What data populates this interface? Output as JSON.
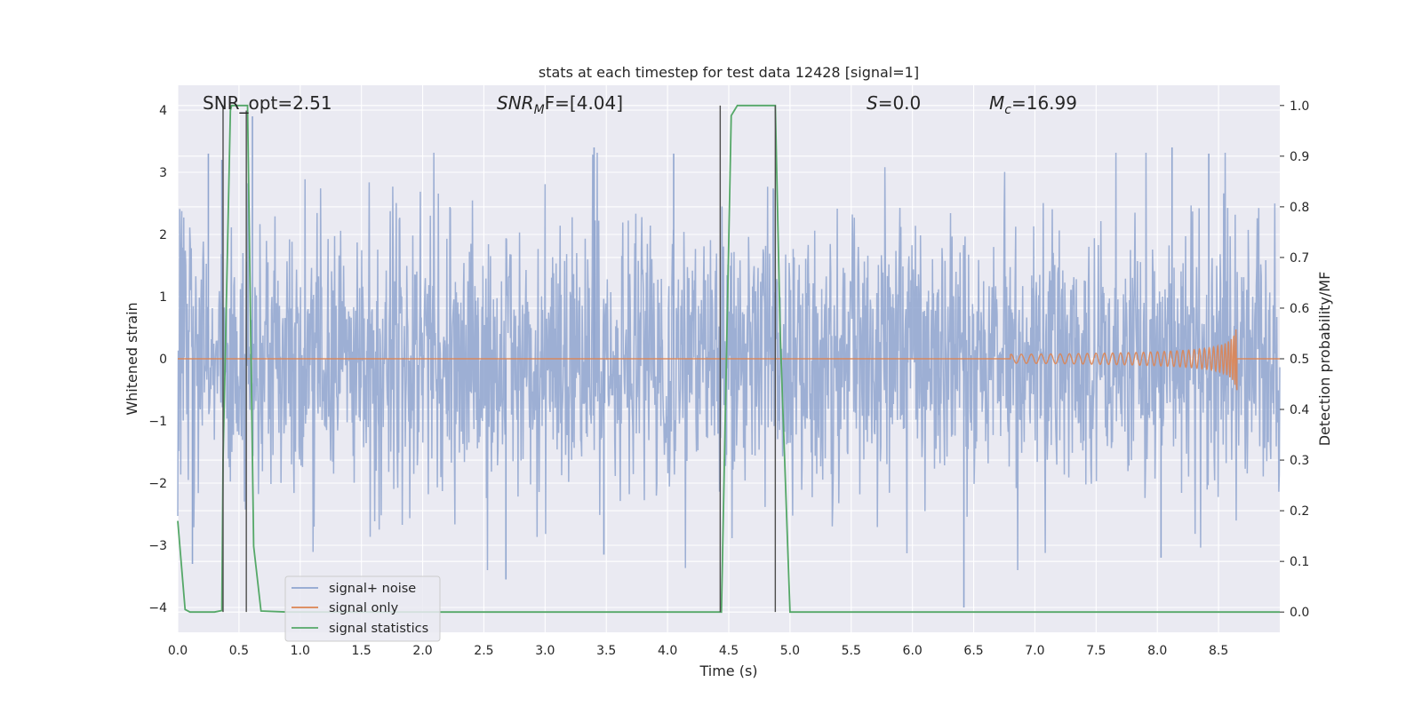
{
  "chart_data": {
    "type": "line",
    "title": "stats at each timestep for test data 12428 [signal=1]",
    "xlabel": "Time (s)",
    "ylabel_left": "Whitened strain",
    "ylabel_right": "Detection probability/MF",
    "xlim": [
      0,
      9.0
    ],
    "ylim_left": [
      -4.4,
      4.4
    ],
    "ylim_right": [
      -0.04,
      1.04
    ],
    "x_ticks": [
      0.0,
      0.5,
      1.0,
      1.5,
      2.0,
      2.5,
      3.0,
      3.5,
      4.0,
      4.5,
      5.0,
      5.5,
      6.0,
      6.5,
      7.0,
      7.5,
      8.0,
      8.5
    ],
    "x_tick_labels": [
      "0.0",
      "0.5",
      "1.0",
      "1.5",
      "2.0",
      "2.5",
      "3.0",
      "3.5",
      "4.0",
      "4.5",
      "5.0",
      "5.5",
      "6.0",
      "6.5",
      "7.0",
      "7.5",
      "8.0",
      "8.5"
    ],
    "y_left_ticks": [
      4,
      3,
      2,
      1,
      0,
      -1,
      -2,
      -3,
      -4
    ],
    "y_left_tick_labels": [
      "4",
      "3",
      "2",
      "1",
      "0",
      "−1",
      "−2",
      "−3",
      "−4"
    ],
    "y_right_ticks": [
      1.0,
      0.9,
      0.8,
      0.7,
      0.6,
      0.5,
      0.4,
      0.3,
      0.2,
      0.1,
      0.0
    ],
    "y_right_tick_labels": [
      "1.0",
      "0.9",
      "0.8",
      "0.7",
      "0.6",
      "0.5",
      "0.4",
      "0.3",
      "0.2",
      "0.1",
      "0.0"
    ],
    "grid": true,
    "legend_position": "lower-left",
    "annotations": {
      "snr_opt": "SNR_opt=2.51",
      "snr_mf_prefix": "SNR",
      "snr_mf_sub": "M",
      "snr_mf_suffix": "F=[4.04]",
      "s_label": "S",
      "s_value": "=0.0",
      "mc_label": "M",
      "mc_sub": "c",
      "mc_value": "=16.99"
    },
    "series": [
      {
        "name": "signal+ noise",
        "color": "#8fa5cf",
        "kind": "noise",
        "core_amplitude": 1.55,
        "typical_peak": 2.3,
        "max_peak": 3.9,
        "min_trough": -4.0,
        "notable_peaks": [
          [
            0.61,
            3.9
          ],
          [
            0.25,
            3.3
          ],
          [
            0.36,
            3.2
          ],
          [
            3.4,
            3.4
          ],
          [
            8.12,
            3.4
          ],
          [
            8.42,
            3.3
          ],
          [
            4.05,
            3.3
          ]
        ],
        "notable_troughs": [
          [
            6.42,
            -4.0
          ],
          [
            2.68,
            -3.55
          ],
          [
            0.12,
            -3.3
          ],
          [
            8.03,
            -3.2
          ],
          [
            3.48,
            -3.15
          ]
        ]
      },
      {
        "name": "signal only",
        "color": "#dd8452",
        "kind": "chirp",
        "t_start": 6.8,
        "t_end": 8.65,
        "peak_amplitude": 0.55
      },
      {
        "name": "signal statistics",
        "color": "#55a868",
        "axis": "right",
        "x": [
          0.0,
          0.06,
          0.1,
          0.3,
          0.36,
          0.37,
          0.43,
          0.44,
          0.57,
          0.62,
          0.68,
          0.9,
          4.44,
          4.52,
          4.57,
          4.88,
          4.92,
          5.0,
          9.0
        ],
        "y": [
          0.18,
          0.005,
          0.0,
          0.0,
          0.003,
          0.3,
          0.99,
          1.0,
          1.0,
          0.13,
          0.002,
          0.0,
          0.0,
          0.98,
          1.0,
          1.0,
          0.55,
          0.0,
          0.0
        ]
      }
    ],
    "event_markers": [
      {
        "x": 0.37,
        "y_from": 0.0,
        "y_to": 1.0
      },
      {
        "x": 0.56,
        "y_from": 0.0,
        "y_to": 0.99
      },
      {
        "x": 4.43,
        "y_from": 0.0,
        "y_to": 1.0
      },
      {
        "x": 4.88,
        "y_from": 0.0,
        "y_to": 1.0
      }
    ]
  }
}
